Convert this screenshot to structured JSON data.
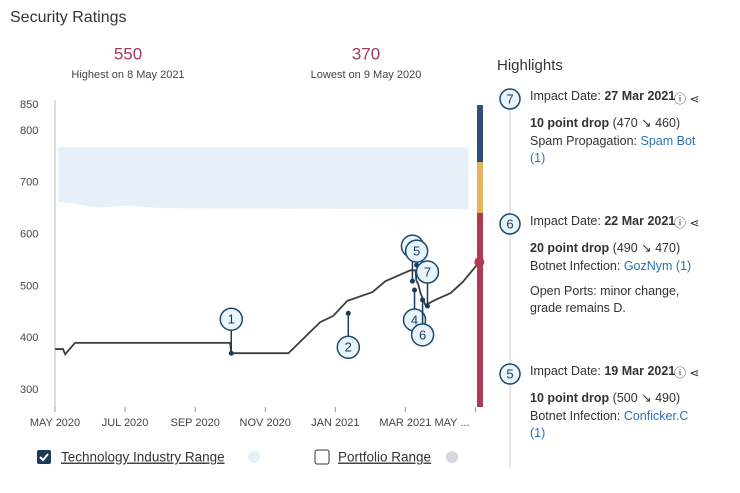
{
  "title": "Security Ratings",
  "stats": [
    {
      "value": 550,
      "label": "Highest on 8 May 2021"
    },
    {
      "value": 370,
      "label": "Lowest on 9 May 2020"
    }
  ],
  "chart_data": {
    "type": "line",
    "xlim": [
      0,
      12.1
    ],
    "ylim": [
      300,
      850
    ],
    "xticks": [
      {
        "value": 0,
        "label": "MAY 2020"
      },
      {
        "value": 2,
        "label": "JUL 2020"
      },
      {
        "value": 4,
        "label": "SEP 2020"
      },
      {
        "value": 6,
        "label": "NOV 2020"
      },
      {
        "value": 8,
        "label": "JAN 2021"
      },
      {
        "value": 10,
        "label": "MAR 2021"
      },
      {
        "value": 12,
        "label": "MAY ..."
      }
    ],
    "yticks": [
      300,
      400,
      500,
      600,
      700,
      800,
      850
    ],
    "series": [
      {
        "color": "#3a3f45",
        "x": [
          0,
          0.23,
          0.29,
          0.57,
          5.0,
          5.03,
          6.66,
          7.57,
          7.94,
          8.34,
          9.06,
          9.43,
          10.14,
          10.29,
          10.31,
          10.37,
          10.43,
          10.57,
          10.86,
          11.29,
          11.63,
          12.11
        ],
        "values": [
          379,
          379,
          369,
          391,
          391,
          371,
          371,
          431,
          443,
          472,
          489,
          510,
          531,
          531,
          512,
          503,
          487,
          464,
          474,
          487,
          508,
          547
        ]
      }
    ],
    "ranges": [
      {
        "name": "Technology Industry Range",
        "color": "#e7f0f9",
        "checked": true,
        "x": [
          0.09,
          1.3,
          2.0,
          3.0,
          6.0,
          11.8
        ],
        "lower": [
          663,
          652,
          656,
          651,
          650,
          649
        ],
        "upper": [
          769,
          769,
          769,
          769,
          769,
          769
        ]
      },
      {
        "name": "Portfolio Range",
        "color": "#d5d8dc",
        "checked": false
      }
    ],
    "events": [
      {
        "label": "1",
        "x": 5.03,
        "y": 371
      },
      {
        "label": "2",
        "x": 8.37,
        "y": 448
      },
      {
        "label": "3",
        "x": 10.2,
        "y": 510
      },
      {
        "label": "4",
        "x": 10.26,
        "y": 493
      },
      {
        "label": "5",
        "x": 10.32,
        "y": 541
      },
      {
        "label": "6",
        "x": 10.49,
        "y": 474
      },
      {
        "label": "7",
        "x": 10.63,
        "y": 462
      }
    ],
    "end_color": "#b03a55"
  },
  "highlights": {
    "title": "Highlights",
    "items": [
      {
        "number": "7",
        "date_label": "Impact Date:",
        "date": "27 Mar 2021",
        "drop": "10 point drop",
        "change": "(470 ↘ 460)",
        "category": "Spam Propagation:",
        "link": "Spam Bot (1)"
      },
      {
        "number": "6",
        "date_label": "Impact Date:",
        "date": "22 Mar 2021",
        "drop": "20 point drop",
        "change": "(490 ↘ 470)",
        "category": "Botnet Infection:",
        "link": "GozNym (1)",
        "note": "Open Ports: minor change, grade remains D."
      },
      {
        "number": "5",
        "date_label": "Impact Date:",
        "date": "19 Mar 2021",
        "drop": "10 point drop",
        "change": "(500 ↘ 490)",
        "category": "Botnet Infection:",
        "link": "Conficker.C (1)"
      }
    ]
  }
}
